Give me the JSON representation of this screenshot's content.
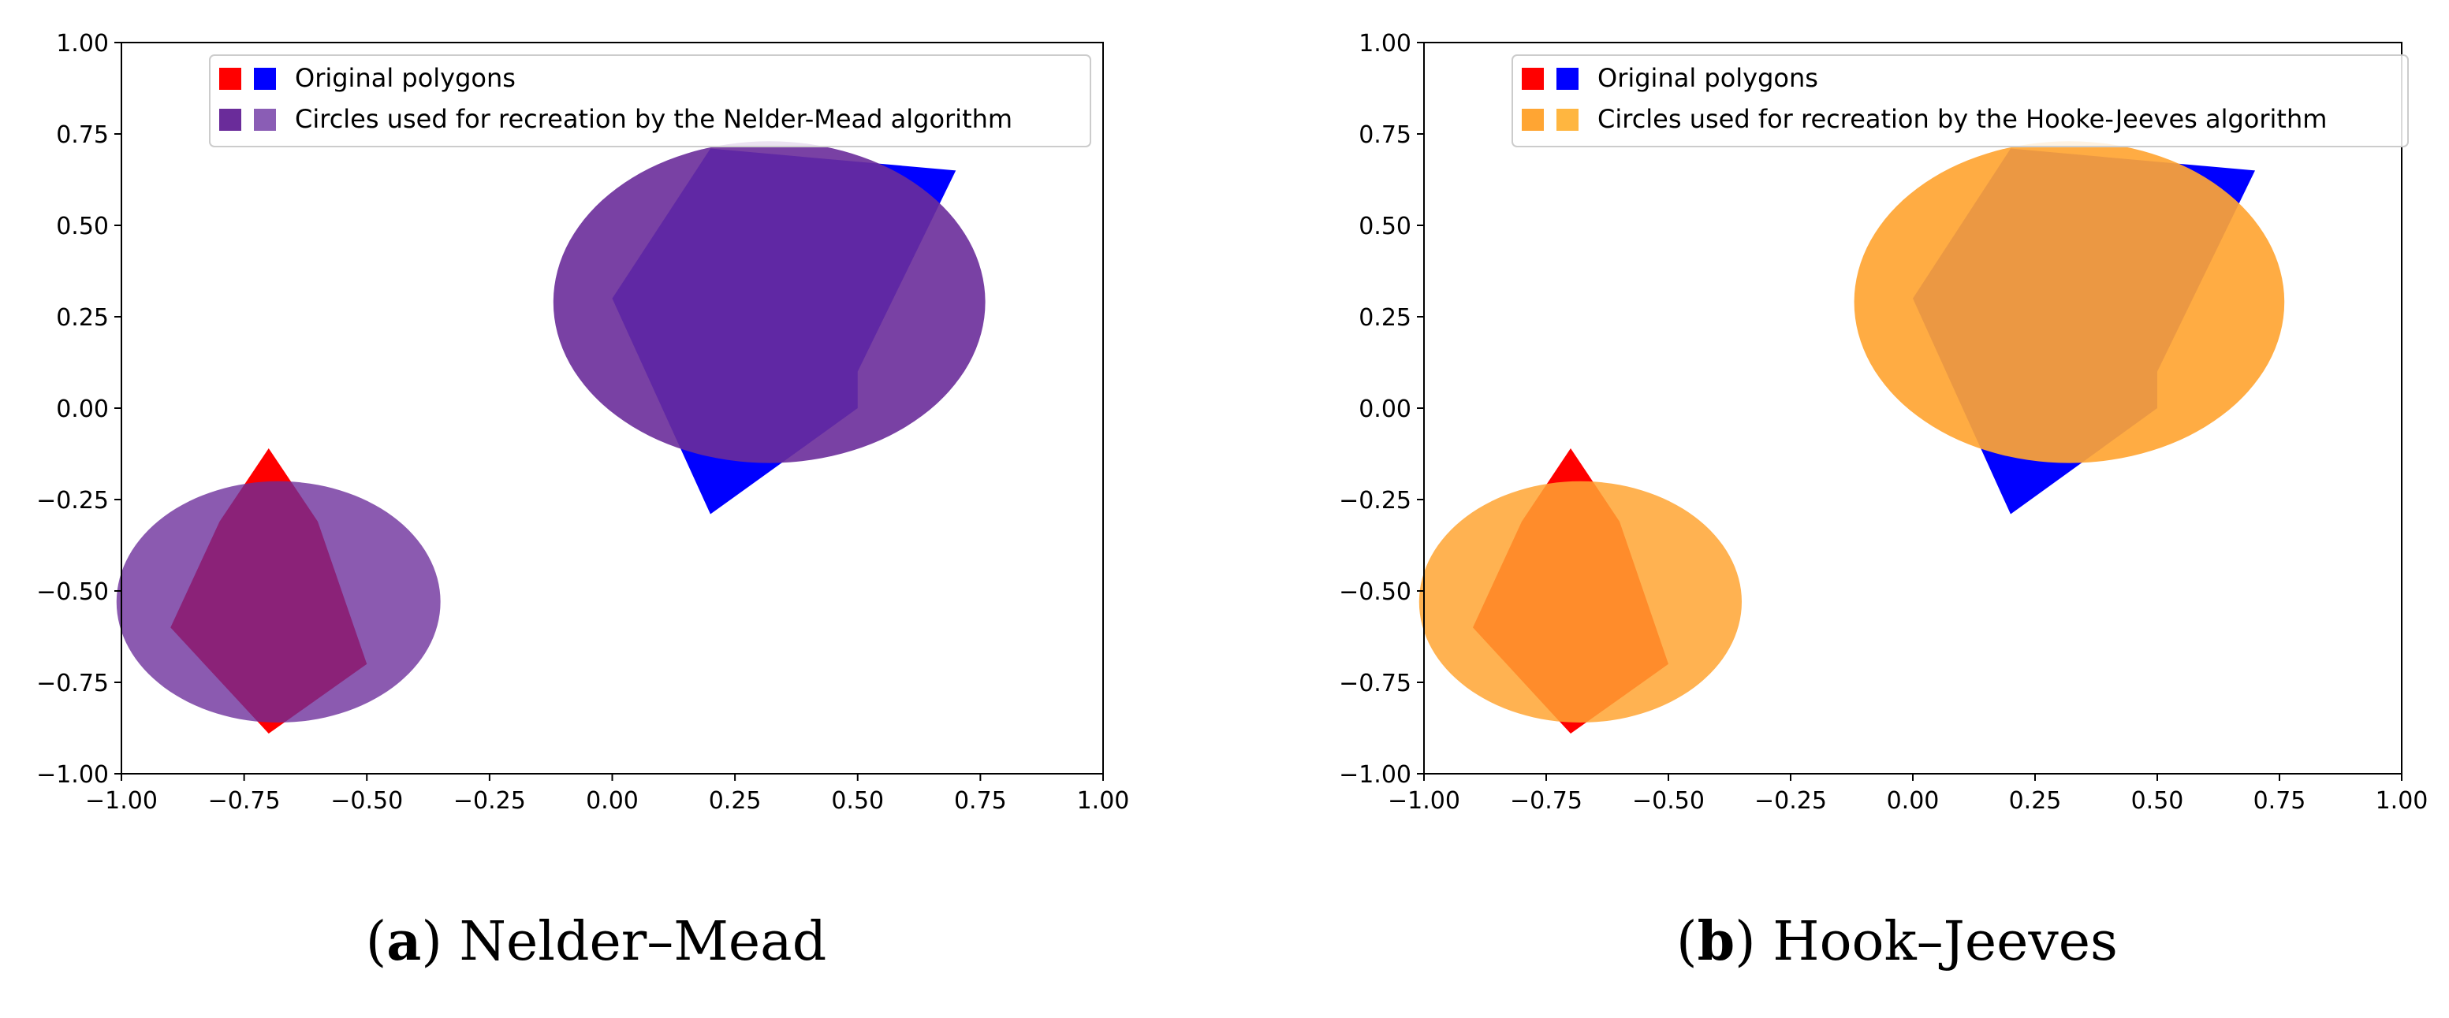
{
  "chart_data": [
    {
      "type": "scatter",
      "caption_letter": "a",
      "caption": "Nelder–Mead",
      "xlim": [
        -1.0,
        1.0
      ],
      "ylim": [
        -1.0,
        1.0
      ],
      "xticks": [
        "−1.00",
        "−0.75",
        "−0.50",
        "−0.25",
        "0.00",
        "0.25",
        "0.50",
        "0.75",
        "1.00"
      ],
      "yticks": [
        "1.00",
        "0.75",
        "0.50",
        "0.25",
        "0.00",
        "−0.25",
        "−0.50",
        "−0.75",
        "−1.00"
      ],
      "xtick_values": [
        -1.0,
        -0.75,
        -0.5,
        -0.25,
        0.0,
        0.25,
        0.5,
        0.75,
        1.0
      ],
      "ytick_values": [
        1.0,
        0.75,
        0.5,
        0.25,
        0.0,
        -0.25,
        -0.5,
        -0.75,
        -1.0
      ],
      "grid": false,
      "legend_position": "top-center",
      "legend": [
        {
          "label": "Original polygons",
          "colors": [
            "#ff0000",
            "#0000ff"
          ]
        },
        {
          "label": "Circles used for recreation by the Nelder-Mead algorithm",
          "colors": [
            "#6a2c9a",
            "#8a5db5"
          ]
        }
      ],
      "polygons": [
        {
          "color": "#ff0000",
          "points": [
            [
              -0.7,
              -0.11
            ],
            [
              -0.6,
              -0.31
            ],
            [
              -0.5,
              -0.7
            ],
            [
              -0.7,
              -0.89
            ],
            [
              -0.9,
              -0.6
            ],
            [
              -0.8,
              -0.31
            ]
          ]
        },
        {
          "color": "#0000ff",
          "points": [
            [
              0.2,
              0.71
            ],
            [
              0.7,
              0.65
            ],
            [
              0.5,
              0.1
            ],
            [
              0.5,
              0.0
            ],
            [
              0.2,
              -0.29
            ],
            [
              0.0,
              0.3
            ]
          ]
        }
      ],
      "circles": [
        {
          "color": "#6a2c9a",
          "opacity": 0.9,
          "cx": 0.32,
          "cy": 0.29,
          "rx": 0.44,
          "ry": 0.44
        },
        {
          "color": "#6a2c9a",
          "opacity": 0.78,
          "cx": -0.68,
          "cy": -0.53,
          "rx": 0.33,
          "ry": 0.33
        }
      ]
    },
    {
      "type": "scatter",
      "caption_letter": "b",
      "caption": "Hook–Jeeves",
      "xlim": [
        -1.0,
        1.0
      ],
      "ylim": [
        -1.0,
        1.0
      ],
      "xticks": [
        "−1.00",
        "−0.75",
        "−0.50",
        "−0.25",
        "0.00",
        "0.25",
        "0.50",
        "0.75",
        "1.00"
      ],
      "yticks": [
        "1.00",
        "0.75",
        "0.50",
        "0.25",
        "0.00",
        "−0.25",
        "−0.50",
        "−0.75",
        "−1.00"
      ],
      "xtick_values": [
        -1.0,
        -0.75,
        -0.5,
        -0.25,
        0.0,
        0.25,
        0.5,
        0.75,
        1.0
      ],
      "ytick_values": [
        1.0,
        0.75,
        0.5,
        0.25,
        0.0,
        -0.25,
        -0.5,
        -0.75,
        -1.0
      ],
      "grid": false,
      "legend_position": "top-center",
      "legend": [
        {
          "label": "Original polygons",
          "colors": [
            "#ff0000",
            "#0000ff"
          ]
        },
        {
          "label": "Circles used for recreation by the Hooke-Jeeves algorithm",
          "colors": [
            "#ffa533",
            "#ffb640"
          ]
        }
      ],
      "polygons": [
        {
          "color": "#ff0000",
          "points": [
            [
              -0.7,
              -0.11
            ],
            [
              -0.6,
              -0.31
            ],
            [
              -0.5,
              -0.7
            ],
            [
              -0.7,
              -0.89
            ],
            [
              -0.9,
              -0.6
            ],
            [
              -0.8,
              -0.31
            ]
          ]
        },
        {
          "color": "#0000ff",
          "points": [
            [
              0.2,
              0.71
            ],
            [
              0.7,
              0.65
            ],
            [
              0.5,
              0.1
            ],
            [
              0.5,
              0.0
            ],
            [
              0.2,
              -0.29
            ],
            [
              0.0,
              0.3
            ]
          ]
        }
      ],
      "circles": [
        {
          "color": "#ffa533",
          "opacity": 0.92,
          "cx": 0.32,
          "cy": 0.29,
          "rx": 0.44,
          "ry": 0.44
        },
        {
          "color": "#ffa533",
          "opacity": 0.85,
          "cx": -0.68,
          "cy": -0.53,
          "rx": 0.33,
          "ry": 0.33
        }
      ]
    }
  ]
}
